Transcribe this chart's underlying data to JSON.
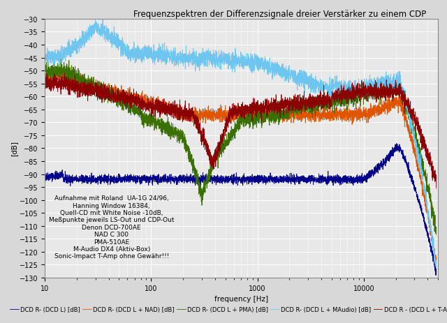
{
  "title": "Frequenzspektren der Differenzsignale dreier Verstärker zu einem CDP",
  "xlabel": "frequency [Hz]",
  "ylabel": "[dB]",
  "xlim": [
    10,
    50000
  ],
  "ylim": [
    -130,
    -30
  ],
  "yticks": [
    -30,
    -35,
    -40,
    -45,
    -50,
    -55,
    -60,
    -65,
    -70,
    -75,
    -80,
    -85,
    -90,
    -95,
    -100,
    -105,
    -110,
    -115,
    -120,
    -125,
    -130
  ],
  "xtick_locs": [
    10,
    100,
    1000,
    10000
  ],
  "xtick_labels": [
    "10",
    "100",
    "1000",
    "10000"
  ],
  "annotation": "Aufnahme mit Roland  UA-1G 24/96,\nHanning Window 16384,\nQuell-CD mit White Noise -10dB,\nMeßpunkte jeweils LS-Out und CDP-Out\nDenon DCD-700AE\nNAD C 300\nPMA-510AE\nM-Audio DX4 (Aktiv-Box)\nSonic-Impact T-Amp ohne Gewähr!!!",
  "legend_labels": [
    "DCD R- (DCD L) [dB]",
    "DCD R- (DCD L + NAD) [dB]",
    "DCD R- (DCD L + PMA) [dB]",
    "DCD R- (DCD L + MAudio) [dB]",
    "DCD R - (DCD L + T-Amp) [dB]"
  ],
  "colors": [
    "#00008B",
    "#E05500",
    "#3A7000",
    "#6EC6F0",
    "#8B0000"
  ],
  "bg_color": "#d8d8d8",
  "plot_bg": "#e8e8e8",
  "grid_color": "#ffffff",
  "title_fontsize": 8.5,
  "axis_label_fontsize": 7.5,
  "tick_fontsize": 7,
  "legend_fontsize": 6,
  "annotation_fontsize": 6.5
}
